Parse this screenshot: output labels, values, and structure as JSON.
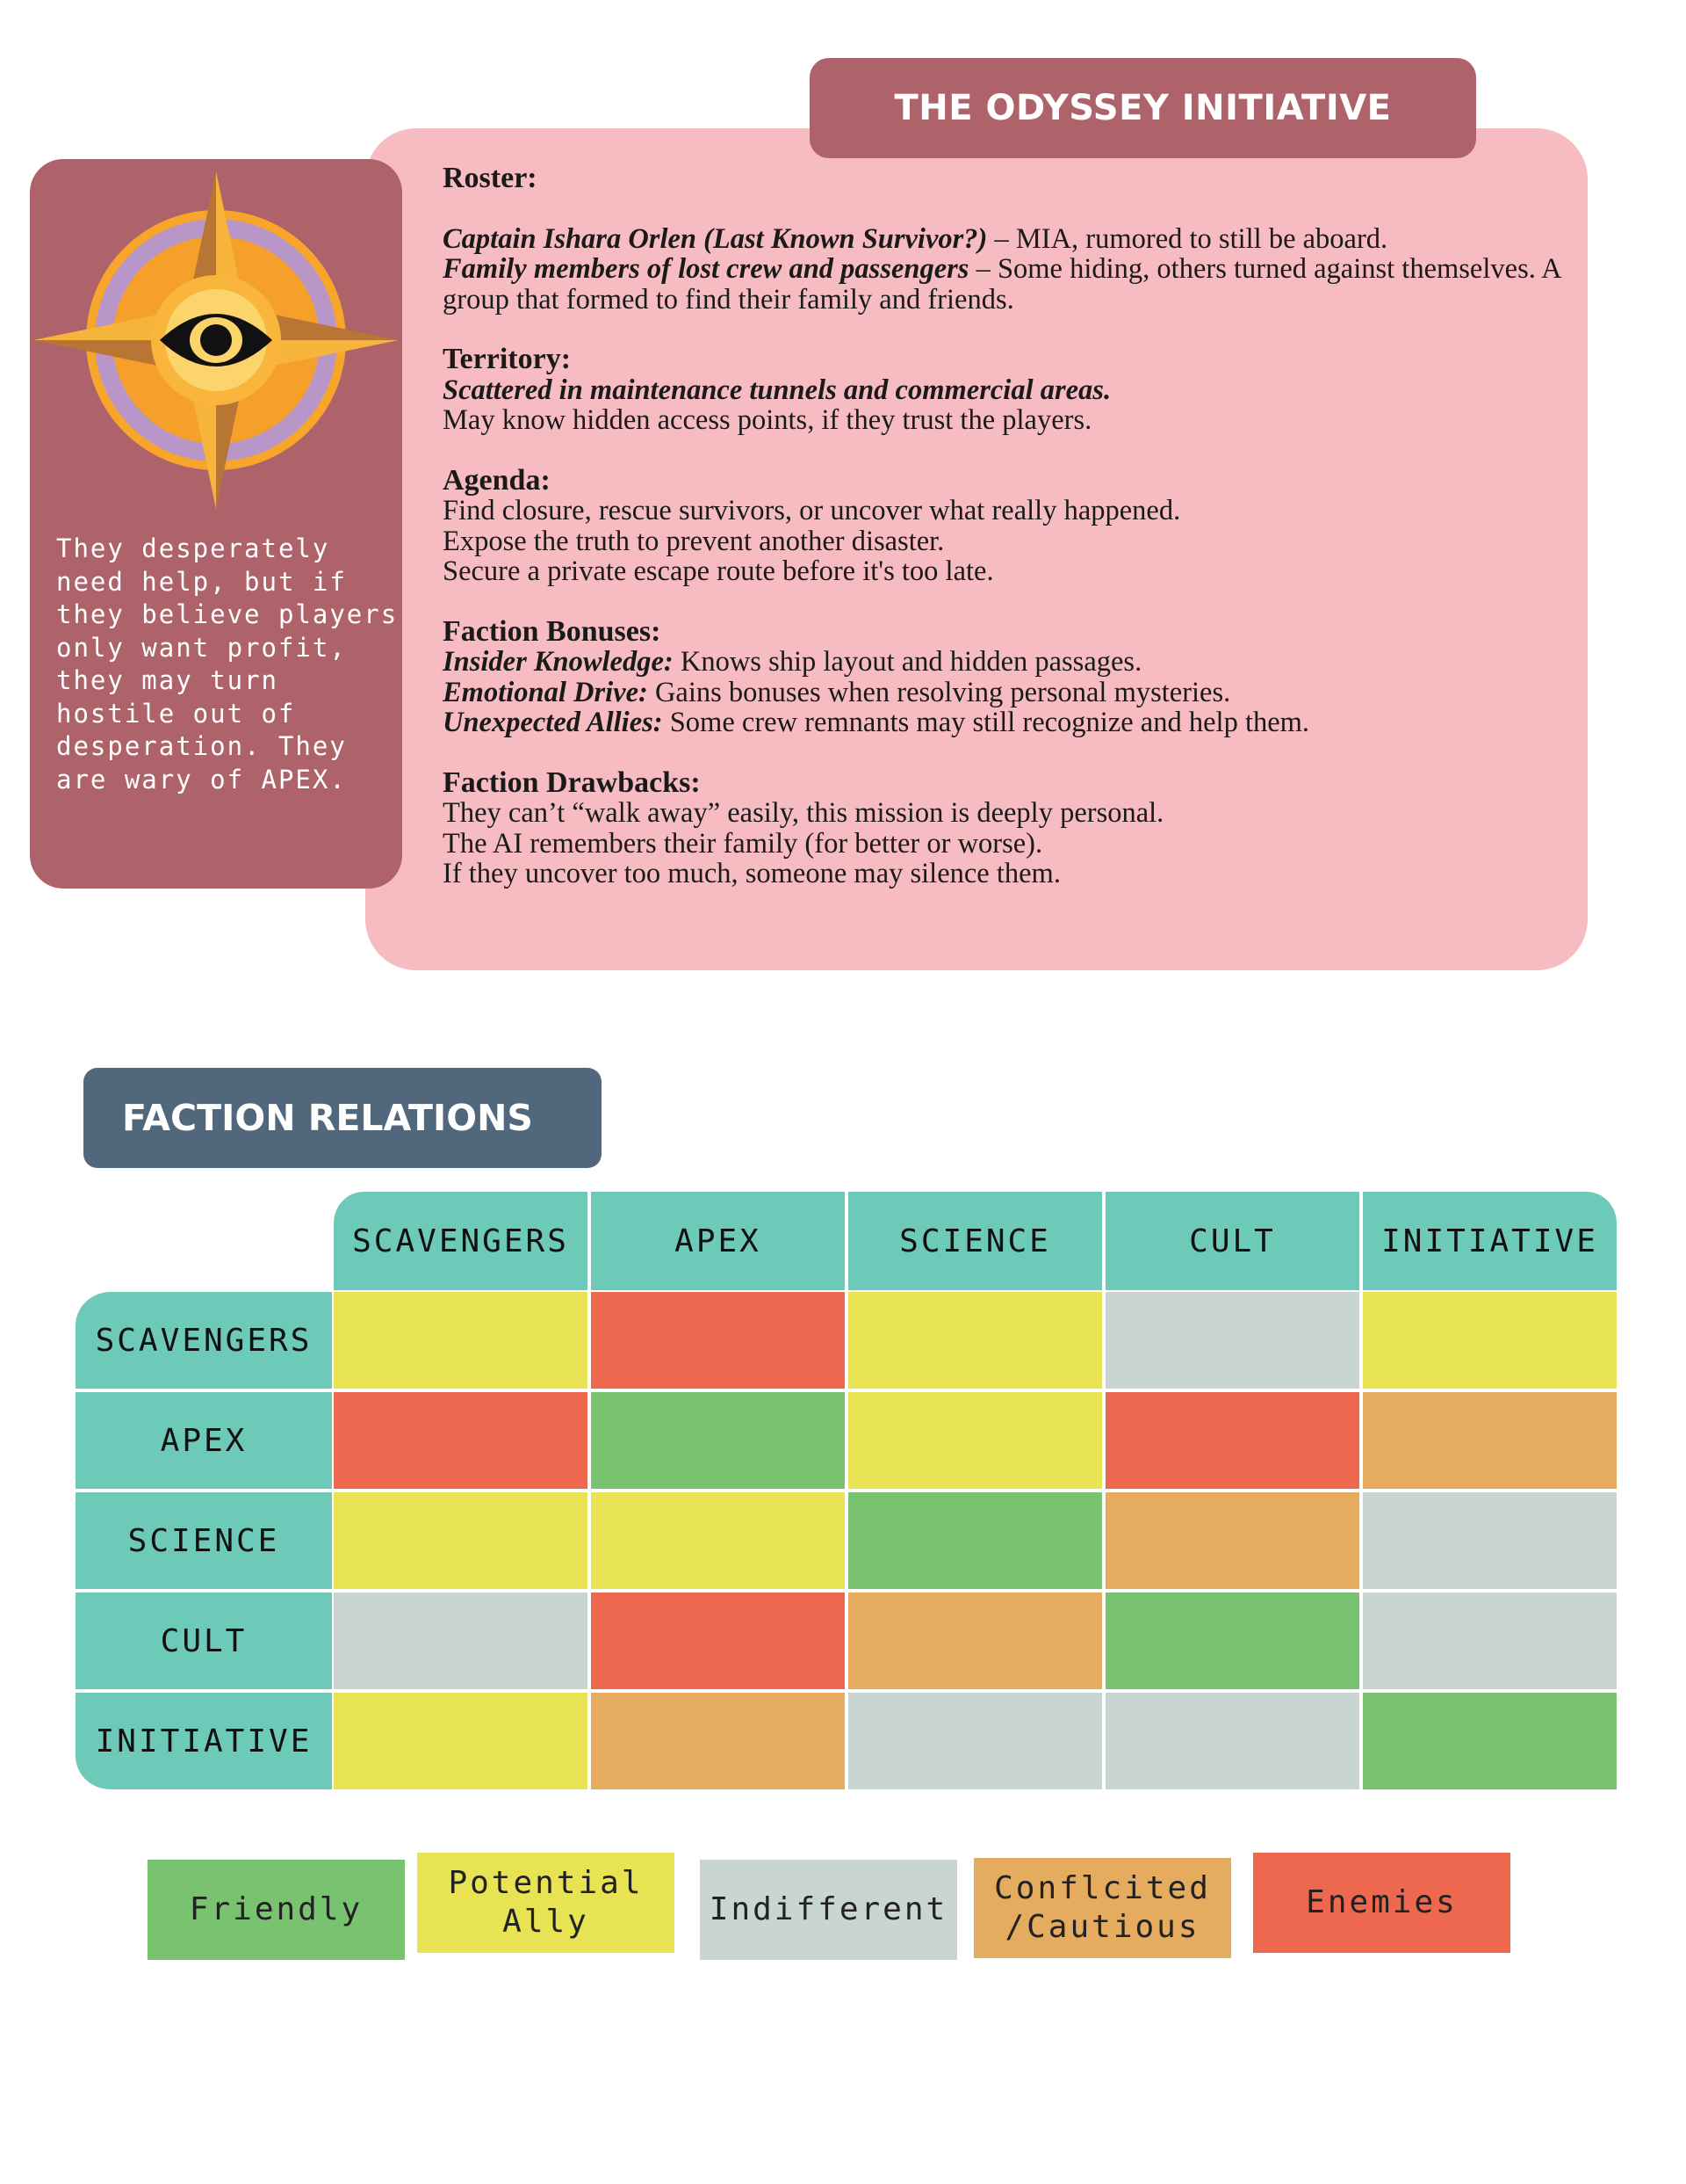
{
  "faction": {
    "title": "THE ODYSSEY INITIATIVE",
    "emblem_icon": "eye-compass-star-icon",
    "side_note": "They desperately need help, but if they believe players only want profit, they may turn hostile out of desperation. They are wary of APEX.",
    "roster": {
      "heading": "Roster:",
      "entries": [
        {
          "name": "Captain Ishara Orlen (Last Known Survivor?)",
          "desc": " – MIA, rumored to still be aboard."
        },
        {
          "name": "Family members of lost crew and passengers",
          "desc": " – Some hiding, others turned against themselves. A group that formed to find their family and friends."
        }
      ]
    },
    "territory": {
      "heading": "Territory:",
      "emphasis": "Scattered in maintenance tunnels and commercial areas.",
      "text": "May know hidden access points, if they trust the players."
    },
    "agenda": {
      "heading": "Agenda:",
      "items": [
        "Find closure, rescue survivors, or uncover what really happened.",
        "Expose the truth to prevent another disaster.",
        "Secure a private escape route before it's too late."
      ]
    },
    "bonuses": {
      "heading": "Faction Bonuses:",
      "items": [
        {
          "name": "Insider Knowledge:",
          "desc": " Knows ship layout and hidden passages."
        },
        {
          "name": "Emotional Drive:",
          "desc": " Gains bonuses when resolving personal mysteries."
        },
        {
          "name": "Unexpected Allies:",
          "desc": " Some crew remnants may still recognize and help them."
        }
      ]
    },
    "drawbacks": {
      "heading": "Faction Drawbacks:",
      "items": [
        "They can’t “walk away” easily, this mission is deeply personal.",
        "The AI remembers their family (for better or worse).",
        "If they uncover too much, someone may silence them."
      ]
    }
  },
  "relations": {
    "title": "FACTION RELATIONS",
    "columns": [
      "SCAVENGERS",
      "APEX",
      "SCIENCE",
      "CULT",
      "INITIATIVE"
    ],
    "rows": [
      {
        "label": "SCAVENGERS",
        "cells": [
          "potential",
          "enemies",
          "potential",
          "indifferent",
          "potential"
        ]
      },
      {
        "label": "APEX",
        "cells": [
          "enemies",
          "friendly",
          "potential",
          "enemies",
          "conflicted"
        ]
      },
      {
        "label": "SCIENCE",
        "cells": [
          "potential",
          "potential",
          "friendly",
          "conflicted",
          "indifferent"
        ]
      },
      {
        "label": "CULT",
        "cells": [
          "indifferent",
          "enemies",
          "conflicted",
          "friendly",
          "indifferent"
        ]
      },
      {
        "label": "INITIATIVE",
        "cells": [
          "potential",
          "conflicted",
          "indifferent",
          "indifferent",
          "friendly"
        ]
      }
    ],
    "legend": [
      {
        "key": "friendly",
        "label": "Friendly",
        "color": "#79c270"
      },
      {
        "key": "potential",
        "label": "Potential\nAlly",
        "color": "#e7e352"
      },
      {
        "key": "indifferent",
        "label": "Indifferent",
        "color": "#c8d5d2"
      },
      {
        "key": "conflicted",
        "label": "Conflcited\n/Cautious",
        "color": "#e5ab5e"
      },
      {
        "key": "enemies",
        "label": "Enemies",
        "color": "#ee6850"
      }
    ],
    "header_color": "#6dc9b8"
  }
}
